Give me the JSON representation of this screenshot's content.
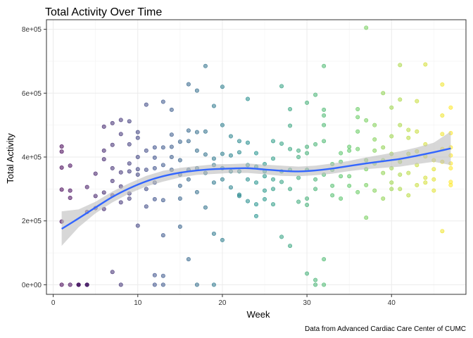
{
  "chart_data": {
    "type": "scatter",
    "title": "Total Activity Over Time",
    "xlabel": "Week",
    "ylabel": "Total Activity",
    "caption": "Data from Advanced Cardiac Care Center of CUMC",
    "xlim": [
      -0.8,
      48.8
    ],
    "ylim": [
      -30000,
      830000
    ],
    "xticks": [
      0,
      10,
      20,
      30,
      40
    ],
    "xtick_labels": [
      "0",
      "10",
      "20",
      "30",
      "40"
    ],
    "yticks": [
      0,
      200000,
      400000,
      600000,
      800000
    ],
    "ytick_labels": [
      "0e+00",
      "2e+05",
      "4e+05",
      "6e+05",
      "8e+05"
    ],
    "grid": true,
    "legend": "none",
    "point_color_scale": "viridis by week",
    "point_colors": [
      "#440154",
      "#3b528b",
      "#21918c",
      "#5ec962",
      "#fde725"
    ],
    "smooth_color": "#3366ff",
    "band_color": "#bdbdbd",
    "points": [
      [
        1,
        198000
      ],
      [
        1,
        367000
      ],
      [
        1,
        433000
      ],
      [
        1,
        417000
      ],
      [
        1,
        298000
      ],
      [
        1,
        0
      ],
      [
        2,
        373000
      ],
      [
        2,
        295000
      ],
      [
        2,
        272000
      ],
      [
        2,
        0
      ],
      [
        3,
        0
      ],
      [
        3,
        0
      ],
      [
        3,
        0
      ],
      [
        4,
        0
      ],
      [
        4,
        0
      ],
      [
        4,
        0
      ],
      [
        4,
        306000
      ],
      [
        4,
        228000
      ],
      [
        5,
        240000
      ],
      [
        5,
        278000
      ],
      [
        5,
        348000
      ],
      [
        6,
        289000
      ],
      [
        6,
        237000
      ],
      [
        6,
        393000
      ],
      [
        6,
        495000
      ],
      [
        6,
        420000
      ],
      [
        7,
        506000
      ],
      [
        7,
        438000
      ],
      [
        7,
        365000
      ],
      [
        7,
        325000
      ],
      [
        7,
        40000
      ],
      [
        7,
        280000
      ],
      [
        8,
        516000
      ],
      [
        8,
        472000
      ],
      [
        8,
        352000
      ],
      [
        8,
        258000
      ],
      [
        8,
        0
      ],
      [
        8,
        308000
      ],
      [
        9,
        512000
      ],
      [
        9,
        440000
      ],
      [
        9,
        380000
      ],
      [
        9,
        286000
      ],
      [
        9,
        270000
      ],
      [
        9,
        355000
      ],
      [
        10,
        478000
      ],
      [
        10,
        460000
      ],
      [
        10,
        400000
      ],
      [
        10,
        362000
      ],
      [
        10,
        185000
      ],
      [
        10,
        345000
      ],
      [
        11,
        564000
      ],
      [
        11,
        420000
      ],
      [
        11,
        300000
      ],
      [
        11,
        245000
      ],
      [
        11,
        360000
      ],
      [
        12,
        430000
      ],
      [
        12,
        398000
      ],
      [
        12,
        268000
      ],
      [
        12,
        30000
      ],
      [
        12,
        0
      ],
      [
        12,
        320000
      ],
      [
        12,
        365000
      ],
      [
        13,
        573000
      ],
      [
        13,
        430000
      ],
      [
        13,
        375000
      ],
      [
        13,
        155000
      ],
      [
        13,
        28000
      ],
      [
        13,
        0
      ],
      [
        13,
        265000
      ],
      [
        14,
        548000
      ],
      [
        14,
        470000
      ],
      [
        14,
        432000
      ],
      [
        14,
        400000
      ],
      [
        14,
        360000
      ],
      [
        15,
        448000
      ],
      [
        15,
        345000
      ],
      [
        15,
        310000
      ],
      [
        15,
        182000
      ],
      [
        15,
        270000
      ],
      [
        15,
        390000
      ],
      [
        16,
        628000
      ],
      [
        16,
        483000
      ],
      [
        16,
        450000
      ],
      [
        16,
        330000
      ],
      [
        16,
        80000
      ],
      [
        16,
        360000
      ],
      [
        17,
        608000
      ],
      [
        17,
        478000
      ],
      [
        17,
        420000
      ],
      [
        17,
        365000
      ],
      [
        17,
        290000
      ],
      [
        17,
        0
      ],
      [
        18,
        685000
      ],
      [
        18,
        480000
      ],
      [
        18,
        408000
      ],
      [
        18,
        350000
      ],
      [
        18,
        242000
      ],
      [
        19,
        560000
      ],
      [
        19,
        395000
      ],
      [
        19,
        375000
      ],
      [
        19,
        160000
      ],
      [
        19,
        0
      ],
      [
        19,
        320000
      ],
      [
        20,
        620000
      ],
      [
        20,
        500000
      ],
      [
        20,
        410000
      ],
      [
        20,
        330000
      ],
      [
        20,
        140000
      ],
      [
        20,
        365000
      ],
      [
        21,
        465000
      ],
      [
        21,
        405000
      ],
      [
        21,
        355000
      ],
      [
        21,
        305000
      ],
      [
        22,
        450000
      ],
      [
        22,
        415000
      ],
      [
        22,
        355000
      ],
      [
        22,
        282000
      ],
      [
        22,
        278000
      ],
      [
        23,
        582000
      ],
      [
        23,
        445000
      ],
      [
        23,
        375000
      ],
      [
        23,
        330000
      ],
      [
        23,
        262000
      ],
      [
        24,
        412000
      ],
      [
        24,
        370000
      ],
      [
        24,
        252000
      ],
      [
        24,
        215000
      ],
      [
        24,
        320000
      ],
      [
        25,
        378000
      ],
      [
        25,
        355000
      ],
      [
        25,
        295000
      ],
      [
        25,
        268000
      ],
      [
        25,
        340000
      ],
      [
        26,
        450000
      ],
      [
        26,
        395000
      ],
      [
        26,
        330000
      ],
      [
        26,
        300000
      ],
      [
        26,
        252000
      ],
      [
        27,
        622000
      ],
      [
        27,
        442000
      ],
      [
        27,
        322000
      ],
      [
        27,
        150000
      ],
      [
        27,
        355000
      ],
      [
        28,
        550000
      ],
      [
        28,
        498000
      ],
      [
        28,
        425000
      ],
      [
        28,
        360000
      ],
      [
        28,
        122000
      ],
      [
        28,
        300000
      ],
      [
        29,
        420000
      ],
      [
        29,
        400000
      ],
      [
        29,
        335000
      ],
      [
        29,
        260000
      ],
      [
        30,
        570000
      ],
      [
        30,
        432000
      ],
      [
        30,
        412000
      ],
      [
        30,
        360000
      ],
      [
        30,
        270000
      ],
      [
        30,
        35000
      ],
      [
        30,
        250000
      ],
      [
        31,
        595000
      ],
      [
        31,
        440000
      ],
      [
        31,
        330000
      ],
      [
        31,
        15000
      ],
      [
        31,
        0
      ],
      [
        31,
        300000
      ],
      [
        32,
        548000
      ],
      [
        32,
        530000
      ],
      [
        32,
        500000
      ],
      [
        32,
        345000
      ],
      [
        32,
        80000
      ],
      [
        32,
        0
      ],
      [
        32,
        685000
      ],
      [
        32,
        450000
      ],
      [
        33,
        378000
      ],
      [
        33,
        360000
      ],
      [
        33,
        310000
      ],
      [
        33,
        280000
      ],
      [
        34,
        412000
      ],
      [
        34,
        385000
      ],
      [
        34,
        340000
      ],
      [
        34,
        270000
      ],
      [
        35,
        432000
      ],
      [
        35,
        420000
      ],
      [
        35,
        340000
      ],
      [
        35,
        310000
      ],
      [
        36,
        550000
      ],
      [
        36,
        525000
      ],
      [
        36,
        480000
      ],
      [
        36,
        425000
      ],
      [
        36,
        290000
      ],
      [
        37,
        805000
      ],
      [
        37,
        515000
      ],
      [
        37,
        390000
      ],
      [
        37,
        362000
      ],
      [
        37,
        312000
      ],
      [
        37,
        210000
      ],
      [
        38,
        500000
      ],
      [
        38,
        455000
      ],
      [
        38,
        420000
      ],
      [
        38,
        380000
      ],
      [
        38,
        295000
      ],
      [
        39,
        600000
      ],
      [
        39,
        430000
      ],
      [
        39,
        390000
      ],
      [
        39,
        350000
      ],
      [
        39,
        270000
      ],
      [
        40,
        555000
      ],
      [
        40,
        465000
      ],
      [
        40,
        410000
      ],
      [
        40,
        365000
      ],
      [
        40,
        320000
      ],
      [
        40,
        300000
      ],
      [
        41,
        688000
      ],
      [
        41,
        580000
      ],
      [
        41,
        500000
      ],
      [
        41,
        385000
      ],
      [
        41,
        345000
      ],
      [
        41,
        300000
      ],
      [
        42,
        485000
      ],
      [
        42,
        460000
      ],
      [
        42,
        410000
      ],
      [
        42,
        350000
      ],
      [
        42,
        280000
      ],
      [
        43,
        575000
      ],
      [
        43,
        480000
      ],
      [
        43,
        418000
      ],
      [
        43,
        375000
      ],
      [
        43,
        312000
      ],
      [
        44,
        690000
      ],
      [
        44,
        440000
      ],
      [
        44,
        402000
      ],
      [
        44,
        335000
      ],
      [
        44,
        320000
      ],
      [
        45,
        390000
      ],
      [
        45,
        362000
      ],
      [
        45,
        330000
      ],
      [
        45,
        295000
      ],
      [
        46,
        627000
      ],
      [
        46,
        530000
      ],
      [
        46,
        472000
      ],
      [
        46,
        425000
      ],
      [
        46,
        385000
      ],
      [
        46,
        168000
      ],
      [
        47,
        555000
      ],
      [
        47,
        475000
      ],
      [
        47,
        430000
      ],
      [
        47,
        405000
      ],
      [
        47,
        380000
      ],
      [
        47,
        322000
      ],
      [
        47,
        312000
      ],
      [
        47,
        365000
      ]
    ],
    "smooth_line": [
      [
        1,
        175000
      ],
      [
        3,
        208000
      ],
      [
        5,
        242000
      ],
      [
        7,
        275000
      ],
      [
        9,
        302000
      ],
      [
        11,
        324000
      ],
      [
        13,
        340000
      ],
      [
        15,
        351000
      ],
      [
        17,
        358000
      ],
      [
        19,
        362000
      ],
      [
        21,
        364000
      ],
      [
        23,
        365000
      ],
      [
        25,
        361000
      ],
      [
        27,
        357000
      ],
      [
        29,
        355000
      ],
      [
        31,
        358000
      ],
      [
        33,
        364000
      ],
      [
        35,
        372000
      ],
      [
        37,
        380000
      ],
      [
        39,
        387000
      ],
      [
        41,
        394000
      ],
      [
        43,
        404000
      ],
      [
        45,
        415000
      ],
      [
        47,
        427000
      ]
    ],
    "smooth_band_upper": [
      [
        1,
        230000
      ],
      [
        3,
        236000
      ],
      [
        5,
        260000
      ],
      [
        7,
        292000
      ],
      [
        9,
        318000
      ],
      [
        11,
        341000
      ],
      [
        13,
        357000
      ],
      [
        15,
        366000
      ],
      [
        17,
        372000
      ],
      [
        19,
        377000
      ],
      [
        21,
        378000
      ],
      [
        23,
        380000
      ],
      [
        25,
        376000
      ],
      [
        27,
        373000
      ],
      [
        29,
        370000
      ],
      [
        31,
        373000
      ],
      [
        33,
        380000
      ],
      [
        35,
        388000
      ],
      [
        37,
        399000
      ],
      [
        39,
        408000
      ],
      [
        41,
        418000
      ],
      [
        43,
        430000
      ],
      [
        45,
        445000
      ],
      [
        47,
        480000
      ]
    ],
    "smooth_band_lower": [
      [
        1,
        122000
      ],
      [
        3,
        180000
      ],
      [
        5,
        224000
      ],
      [
        7,
        258000
      ],
      [
        9,
        286000
      ],
      [
        11,
        308000
      ],
      [
        13,
        323000
      ],
      [
        15,
        336000
      ],
      [
        17,
        344000
      ],
      [
        19,
        347000
      ],
      [
        21,
        350000
      ],
      [
        23,
        350000
      ],
      [
        25,
        346000
      ],
      [
        27,
        341000
      ],
      [
        29,
        340000
      ],
      [
        31,
        343000
      ],
      [
        33,
        348000
      ],
      [
        35,
        356000
      ],
      [
        37,
        362000
      ],
      [
        39,
        366000
      ],
      [
        41,
        370000
      ],
      [
        43,
        378000
      ],
      [
        45,
        385000
      ],
      [
        47,
        375000
      ]
    ]
  }
}
